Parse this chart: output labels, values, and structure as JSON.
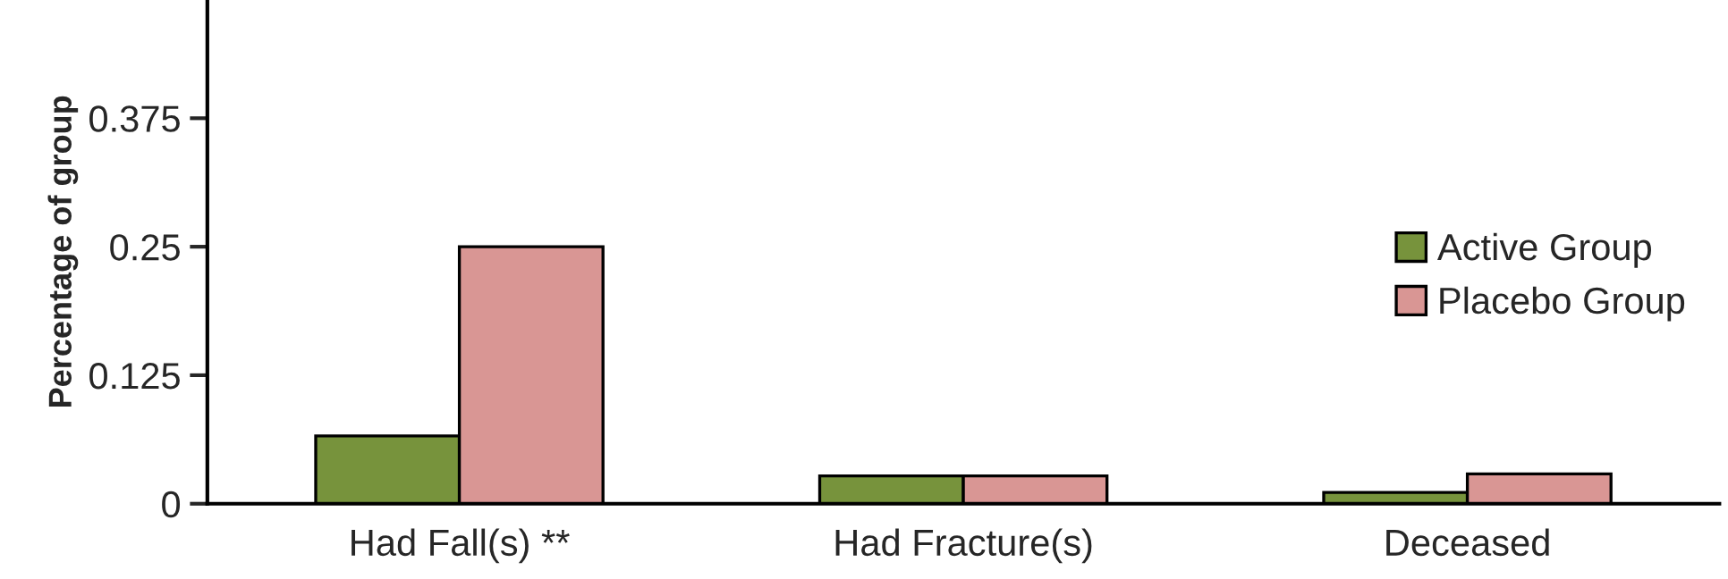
{
  "chart_data": {
    "type": "bar",
    "ylabel": "Percentage of group",
    "categories": [
      "Had Fall(s) **",
      "Had Fracture(s)",
      "Deceased"
    ],
    "series": [
      {
        "name": "Active Group",
        "color": "#77933c",
        "values": [
          0.066,
          0.027,
          0.011
        ]
      },
      {
        "name": "Placebo Group",
        "color": "#d99694",
        "values": [
          0.25,
          0.027,
          0.029
        ]
      }
    ],
    "ylim": [
      0,
      0.49
    ],
    "yticks": [
      0,
      0.125,
      0.25,
      0.375
    ],
    "grid": false,
    "legend": "right"
  }
}
